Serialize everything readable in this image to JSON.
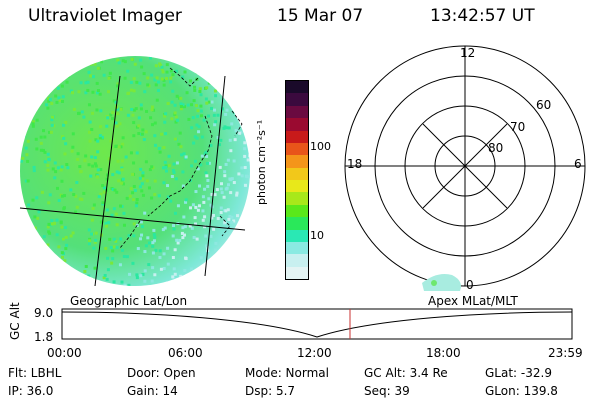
{
  "header": {
    "instrument": "Ultraviolet Imager",
    "date": "15 Mar 07",
    "time": "13:42:57 UT"
  },
  "colorbar": {
    "unit_label": "photon cm⁻²s⁻¹",
    "ticks": [
      "100",
      "10"
    ],
    "colors": [
      "#1a0a2a",
      "#3b0a3e",
      "#6a0a40",
      "#9a0a30",
      "#c81a1a",
      "#e8551a",
      "#f4951a",
      "#f2c81a",
      "#e8e81a",
      "#a8e81a",
      "#5ae81a",
      "#2ae85a",
      "#2ae8b4",
      "#8aeae2",
      "#c8f0f0",
      "#e4f4f4"
    ]
  },
  "polar": {
    "labels": {
      "top": "12",
      "left": "18",
      "right": "6",
      "bottom": "0"
    },
    "rings": [
      "60",
      "70",
      "80"
    ]
  },
  "timeline": {
    "left_label": "Geographic Lat/Lon",
    "right_label": "Apex MLat/MLT",
    "axis_title": "GC Alt",
    "y_labels": [
      "9.0",
      "1.8"
    ],
    "x_labels": [
      "00:00",
      "06:00",
      "12:00",
      "18:00",
      "23:59"
    ],
    "marker_color": "#c83232"
  },
  "footer": {
    "row1": [
      {
        "label": "Flt: LBHL"
      },
      {
        "label": "Door: Open"
      },
      {
        "label": "Mode: Normal"
      },
      {
        "label": "GC Alt: 3.4 Re"
      },
      {
        "label": "GLat: -32.9"
      }
    ],
    "row2": [
      {
        "label": "IP: 36.0"
      },
      {
        "label": "Gain: 14"
      },
      {
        "label": "Dsp:     5.7"
      },
      {
        "label": "Seq: 39"
      },
      {
        "label": "GLon: 139.8"
      }
    ]
  }
}
